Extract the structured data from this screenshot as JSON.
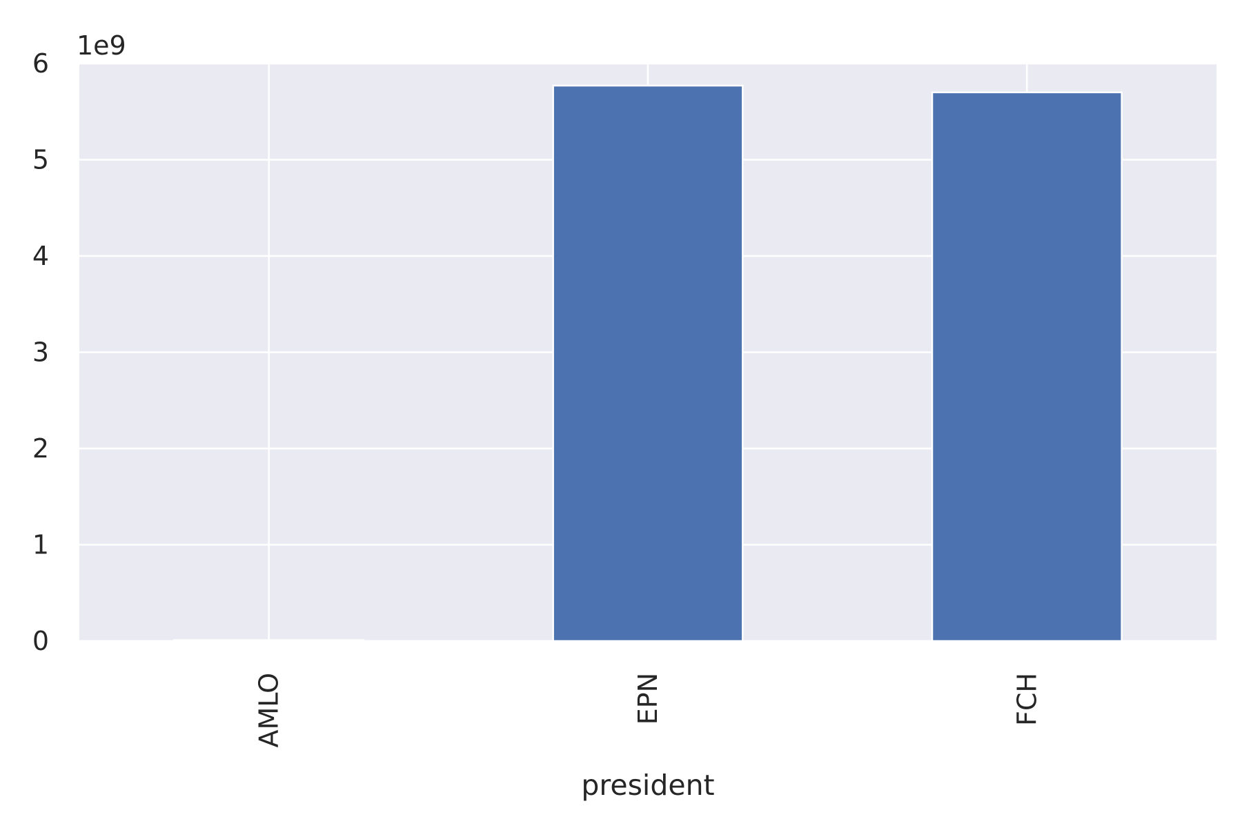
{
  "chart_data": {
    "type": "bar",
    "title": "",
    "xlabel": "president",
    "ylabel": "",
    "categories": [
      "AMLO",
      "EPN",
      "FCH"
    ],
    "values": [
      10000000,
      5770000000,
      5700000000
    ],
    "ylim": [
      0,
      6000000000
    ],
    "y_ticks": [
      0,
      1,
      2,
      3,
      4,
      5,
      6
    ],
    "y_tick_labels": [
      "0",
      "1",
      "2",
      "3",
      "4",
      "5",
      "6"
    ],
    "y_offset_label": "1e9",
    "grid": true,
    "legend": "none",
    "colors": {
      "bar": "#4c72b0",
      "plot_background": "#eaeaf2",
      "grid": "#ffffff",
      "text": "#262626"
    }
  }
}
